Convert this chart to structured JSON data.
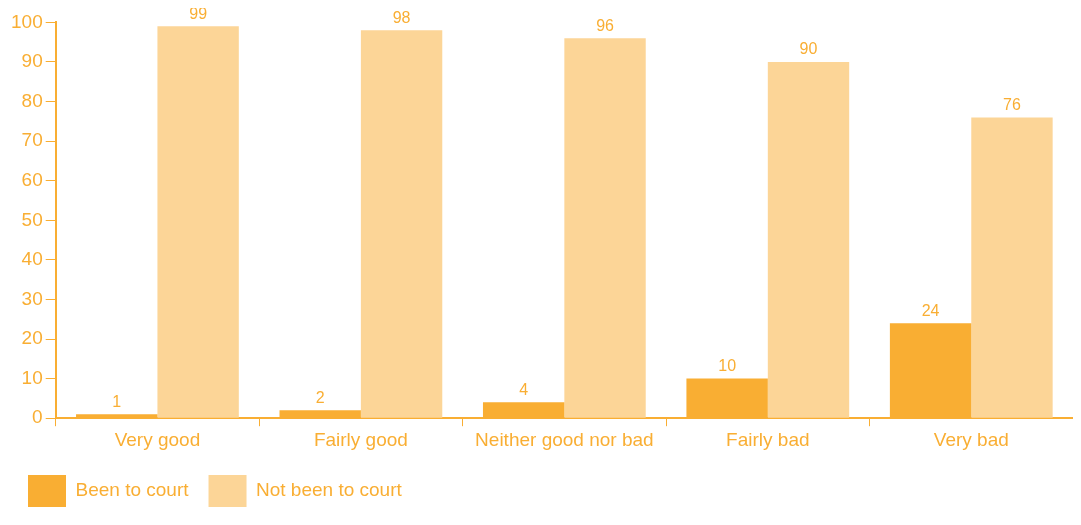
{
  "chart_data": {
    "type": "bar",
    "categories": [
      "Very good",
      "Fairly good",
      "Neither good nor bad",
      "Fairly bad",
      "Very bad"
    ],
    "series": [
      {
        "name": "Been to court",
        "color": "#f9ae33",
        "values": [
          1,
          2,
          4,
          10,
          24
        ]
      },
      {
        "name": "Not been to court",
        "color": "#fcd597",
        "values": [
          99,
          98,
          96,
          90,
          76
        ]
      }
    ],
    "ylim": [
      0,
      100
    ],
    "yticks": [
      0,
      10,
      20,
      30,
      40,
      50,
      60,
      70,
      80,
      90,
      100
    ],
    "grid": false,
    "legend": "bottom left",
    "data_labels": true
  }
}
